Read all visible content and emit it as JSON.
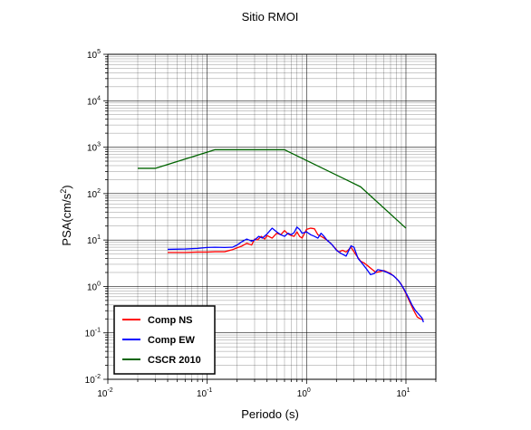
{
  "chart_data": {
    "type": "line",
    "title": "Sitio RMOI",
    "xlabel": "Periodo (s)",
    "ylabel": "PSA(cm/s²)",
    "x_scale": "log",
    "y_scale": "log",
    "xlim": [
      0.01,
      20
    ],
    "ylim": [
      0.01,
      100000
    ],
    "x_tick_labels": [
      {
        "value": 0.01,
        "base": "10",
        "exp": "-2"
      },
      {
        "value": 0.1,
        "base": "10",
        "exp": "-1"
      },
      {
        "value": 1,
        "base": "10",
        "exp": "0"
      },
      {
        "value": 10,
        "base": "10",
        "exp": "1"
      }
    ],
    "y_tick_labels": [
      {
        "value": 0.01,
        "base": "10",
        "exp": "-2"
      },
      {
        "value": 0.1,
        "base": "10",
        "exp": "-1"
      },
      {
        "value": 1,
        "base": "10",
        "exp": "0"
      },
      {
        "value": 10,
        "base": "10",
        "exp": "1"
      },
      {
        "value": 100,
        "base": "10",
        "exp": "2"
      },
      {
        "value": 1000,
        "base": "10",
        "exp": "3"
      },
      {
        "value": 10000,
        "base": "10",
        "exp": "4"
      },
      {
        "value": 100000,
        "base": "10",
        "exp": "5"
      }
    ],
    "grid": true,
    "legend_position": "bottom-left",
    "series": [
      {
        "name": "Comp NS",
        "color": "#ff0000",
        "points": [
          [
            0.04,
            5.4
          ],
          [
            0.06,
            5.4
          ],
          [
            0.08,
            5.5
          ],
          [
            0.1,
            5.5
          ],
          [
            0.12,
            5.6
          ],
          [
            0.15,
            5.6
          ],
          [
            0.18,
            6.2
          ],
          [
            0.2,
            6.8
          ],
          [
            0.22,
            7.3
          ],
          [
            0.25,
            8.5
          ],
          [
            0.28,
            7.8
          ],
          [
            0.3,
            10.5
          ],
          [
            0.32,
            10.0
          ],
          [
            0.35,
            12.0
          ],
          [
            0.38,
            10.5
          ],
          [
            0.4,
            12.5
          ],
          [
            0.45,
            11.0
          ],
          [
            0.5,
            14.0
          ],
          [
            0.55,
            13.0
          ],
          [
            0.6,
            16.0
          ],
          [
            0.65,
            13.5
          ],
          [
            0.7,
            12.5
          ],
          [
            0.75,
            12.0
          ],
          [
            0.8,
            15.0
          ],
          [
            0.85,
            12.0
          ],
          [
            0.9,
            11.0
          ],
          [
            1.0,
            17.0
          ],
          [
            1.1,
            18.0
          ],
          [
            1.2,
            17.5
          ],
          [
            1.3,
            13.0
          ],
          [
            1.4,
            12.0
          ],
          [
            1.5,
            11.0
          ],
          [
            1.7,
            9.0
          ],
          [
            1.9,
            7.0
          ],
          [
            2.1,
            5.5
          ],
          [
            2.3,
            6.0
          ],
          [
            2.5,
            5.5
          ],
          [
            2.8,
            7.0
          ],
          [
            3.1,
            5.0
          ],
          [
            3.5,
            3.5
          ],
          [
            3.8,
            3.2
          ],
          [
            4.2,
            2.7
          ],
          [
            4.6,
            2.3
          ],
          [
            5.0,
            2.0
          ],
          [
            5.5,
            2.1
          ],
          [
            6.0,
            2.2
          ],
          [
            7.0,
            1.9
          ],
          [
            8.0,
            1.5
          ],
          [
            9.0,
            1.1
          ],
          [
            10.0,
            0.7
          ],
          [
            11.0,
            0.45
          ],
          [
            12.0,
            0.3
          ],
          [
            13.0,
            0.22
          ],
          [
            14.0,
            0.2
          ],
          [
            15.0,
            0.19
          ]
        ]
      },
      {
        "name": "Comp EW",
        "color": "#0000ff",
        "points": [
          [
            0.04,
            6.3
          ],
          [
            0.06,
            6.4
          ],
          [
            0.08,
            6.6
          ],
          [
            0.1,
            6.9
          ],
          [
            0.12,
            7.0
          ],
          [
            0.15,
            6.9
          ],
          [
            0.18,
            7.0
          ],
          [
            0.2,
            7.8
          ],
          [
            0.22,
            9.0
          ],
          [
            0.25,
            10.5
          ],
          [
            0.28,
            9.5
          ],
          [
            0.3,
            10.0
          ],
          [
            0.33,
            12.0
          ],
          [
            0.36,
            11.0
          ],
          [
            0.4,
            13.5
          ],
          [
            0.45,
            18.0
          ],
          [
            0.5,
            15.0
          ],
          [
            0.55,
            13.0
          ],
          [
            0.6,
            12.0
          ],
          [
            0.65,
            14.0
          ],
          [
            0.7,
            13.0
          ],
          [
            0.75,
            14.5
          ],
          [
            0.8,
            19.0
          ],
          [
            0.85,
            17.0
          ],
          [
            0.9,
            14.0
          ],
          [
            1.0,
            15.0
          ],
          [
            1.1,
            13.0
          ],
          [
            1.2,
            12.0
          ],
          [
            1.3,
            11.0
          ],
          [
            1.4,
            14.0
          ],
          [
            1.5,
            12.0
          ],
          [
            1.6,
            10.0
          ],
          [
            1.8,
            8.0
          ],
          [
            2.0,
            6.0
          ],
          [
            2.2,
            5.2
          ],
          [
            2.5,
            4.5
          ],
          [
            2.8,
            7.5
          ],
          [
            3.0,
            7.0
          ],
          [
            3.3,
            4.0
          ],
          [
            3.6,
            3.2
          ],
          [
            4.0,
            2.4
          ],
          [
            4.4,
            1.8
          ],
          [
            4.8,
            1.9
          ],
          [
            5.2,
            2.3
          ],
          [
            5.8,
            2.2
          ],
          [
            6.5,
            2.0
          ],
          [
            7.5,
            1.7
          ],
          [
            8.5,
            1.3
          ],
          [
            9.5,
            0.9
          ],
          [
            10.5,
            0.6
          ],
          [
            11.5,
            0.4
          ],
          [
            12.5,
            0.3
          ],
          [
            13.5,
            0.25
          ],
          [
            14.5,
            0.21
          ],
          [
            15.0,
            0.17
          ]
        ]
      },
      {
        "name": "CSCR 2010",
        "color": "#006400",
        "points": [
          [
            0.02,
            350
          ],
          [
            0.03,
            350
          ],
          [
            0.12,
            880
          ],
          [
            0.6,
            880
          ],
          [
            3.5,
            140
          ],
          [
            10.0,
            18
          ]
        ]
      }
    ]
  }
}
